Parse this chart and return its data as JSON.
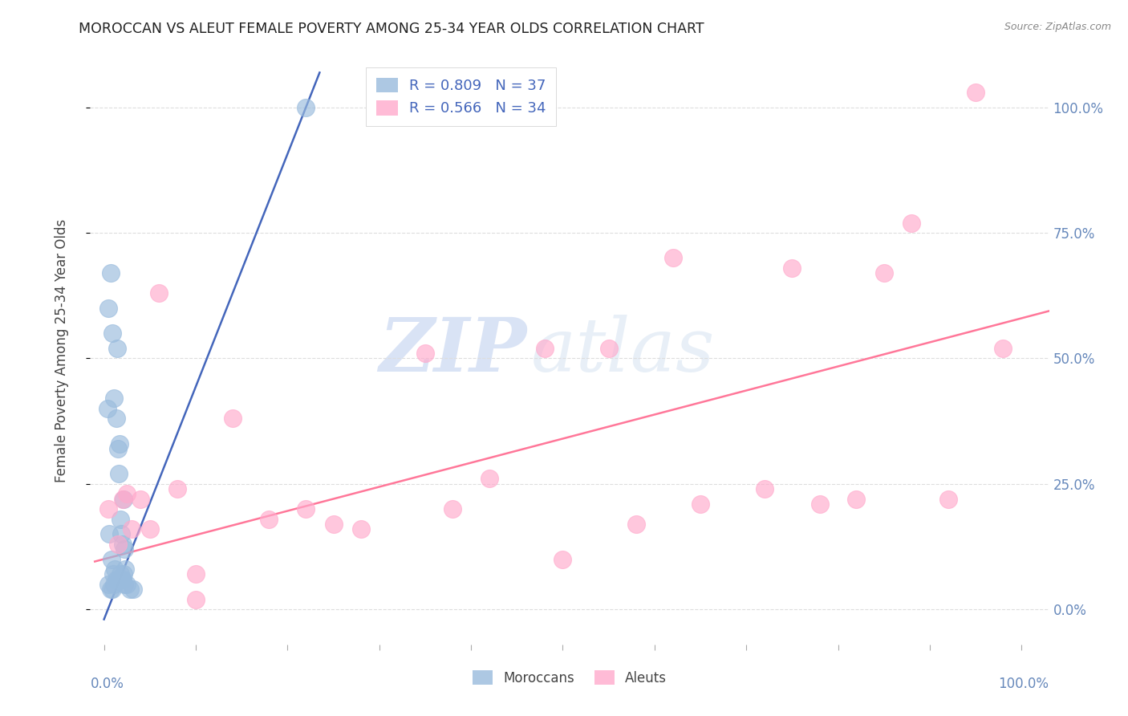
{
  "title": "MOROCCAN VS ALEUT FEMALE POVERTY AMONG 25-34 YEAR OLDS CORRELATION CHART",
  "source": "Source: ZipAtlas.com",
  "ylabel": "Female Poverty Among 25-34 Year Olds",
  "watermark_zip": "ZIP",
  "watermark_atlas": "atlas",
  "blue_R": 0.809,
  "blue_N": 37,
  "pink_R": 0.566,
  "pink_N": 34,
  "blue_color": "#99BBDD",
  "pink_color": "#FFAACC",
  "blue_line_color": "#4466BB",
  "pink_line_color": "#FF7799",
  "ytick_labels": [
    "0.0%",
    "25.0%",
    "50.0%",
    "75.0%",
    "100.0%"
  ],
  "ytick_values": [
    0.0,
    0.25,
    0.5,
    0.75,
    1.0
  ],
  "blue_scatter_x": [
    0.005,
    0.007,
    0.009,
    0.011,
    0.013,
    0.014,
    0.015,
    0.016,
    0.017,
    0.018,
    0.019,
    0.02,
    0.021,
    0.022,
    0.004,
    0.006,
    0.008,
    0.01,
    0.012,
    0.015,
    0.017,
    0.019,
    0.021,
    0.023,
    0.005,
    0.007,
    0.009,
    0.011,
    0.013,
    0.016,
    0.018,
    0.02,
    0.022,
    0.025,
    0.028,
    0.032,
    0.22
  ],
  "blue_scatter_y": [
    0.6,
    0.67,
    0.55,
    0.42,
    0.38,
    0.52,
    0.32,
    0.27,
    0.33,
    0.18,
    0.15,
    0.13,
    0.22,
    0.12,
    0.4,
    0.15,
    0.1,
    0.07,
    0.08,
    0.06,
    0.06,
    0.06,
    0.07,
    0.08,
    0.05,
    0.04,
    0.04,
    0.05,
    0.06,
    0.06,
    0.07,
    0.06,
    0.05,
    0.05,
    0.04,
    0.04,
    1.0
  ],
  "pink_scatter_x": [
    0.005,
    0.015,
    0.02,
    0.025,
    0.03,
    0.04,
    0.05,
    0.06,
    0.08,
    0.1,
    0.14,
    0.18,
    0.22,
    0.28,
    0.35,
    0.42,
    0.5,
    0.58,
    0.62,
    0.65,
    0.72,
    0.75,
    0.78,
    0.82,
    0.85,
    0.88,
    0.92,
    0.95,
    0.48,
    0.55,
    0.25,
    0.38,
    0.98,
    0.1
  ],
  "pink_scatter_y": [
    0.2,
    0.13,
    0.22,
    0.23,
    0.16,
    0.22,
    0.16,
    0.63,
    0.24,
    0.07,
    0.38,
    0.18,
    0.2,
    0.16,
    0.51,
    0.26,
    0.1,
    0.17,
    0.7,
    0.21,
    0.24,
    0.68,
    0.21,
    0.22,
    0.67,
    0.77,
    0.22,
    1.03,
    0.52,
    0.52,
    0.17,
    0.2,
    0.52,
    0.02
  ],
  "background_color": "#FFFFFF",
  "grid_color": "#DDDDDD",
  "legend_label_color": "#4466BB",
  "axis_label_color": "#6688BB"
}
